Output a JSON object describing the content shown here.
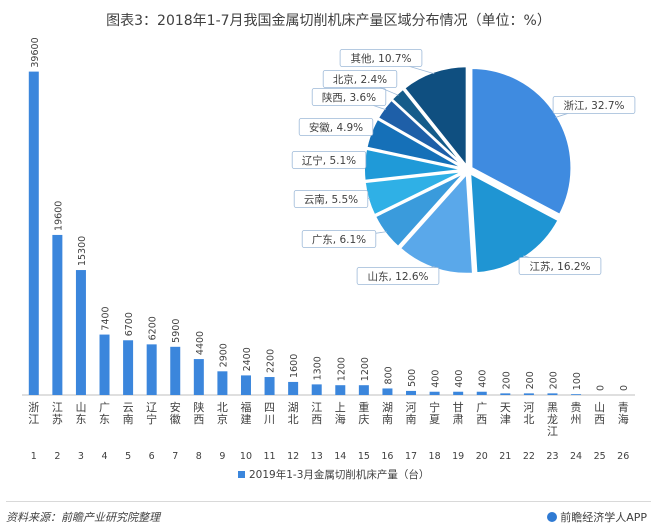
{
  "title": "图表3：2018年1-7月我国金属切削机床产量区域分布情况（单位：%）",
  "source": "资料来源：前瞻产业研究院整理",
  "brand": "前瞻经济学人APP",
  "colors": {
    "bar": "#3b86dc",
    "pie": [
      "#3f8be0",
      "#1f95d3",
      "#5aa8ea",
      "#3a9bdc",
      "#2fb0e6",
      "#1f9ad8",
      "#1570b8",
      "#1e5fa8",
      "#155c8a",
      "#0f4f80",
      "#1d6fa6"
    ]
  },
  "chart_data": [
    {
      "type": "bar",
      "categories": [
        "浙江",
        "江苏",
        "山东",
        "广东",
        "云南",
        "辽宁",
        "安徽",
        "陕西",
        "北京",
        "福建",
        "四川",
        "湖北",
        "江西",
        "上海",
        "重庆",
        "湖南",
        "河南",
        "宁夏",
        "甘肃",
        "广西",
        "天津",
        "河北",
        "黑龙江",
        "贵州",
        "山西",
        "青海"
      ],
      "ranks": [
        "1",
        "2",
        "3",
        "4",
        "5",
        "6",
        "7",
        "8",
        "9",
        "10",
        "11",
        "12",
        "13",
        "14",
        "15",
        "16",
        "17",
        "18",
        "19",
        "20",
        "21",
        "22",
        "23",
        "24",
        "25",
        "26"
      ],
      "series": [
        {
          "name": "2019年1-3月金属切削机床产量（台）",
          "values": [
            39600,
            19600,
            15300,
            7400,
            6700,
            6200,
            5900,
            4400,
            2900,
            2400,
            2200,
            1600,
            1300,
            1200,
            1200,
            800,
            500,
            400,
            400,
            400,
            200,
            200,
            200,
            100,
            0,
            0
          ]
        }
      ],
      "ylim": [
        0,
        42000
      ],
      "legend_position": "bottom"
    },
    {
      "type": "pie",
      "labels": [
        "浙江, 32.7%",
        "江苏, 16.2%",
        "山东, 12.6%",
        "广东, 6.1%",
        "云南, 5.5%",
        "辽宁, 5.1%",
        "安徽, 4.9%",
        "陕西, 3.6%",
        "北京, 2.4%",
        "其他, 10.7%"
      ],
      "values": [
        32.7,
        16.2,
        12.6,
        6.1,
        5.5,
        5.1,
        4.9,
        3.6,
        2.4,
        10.7
      ]
    }
  ]
}
